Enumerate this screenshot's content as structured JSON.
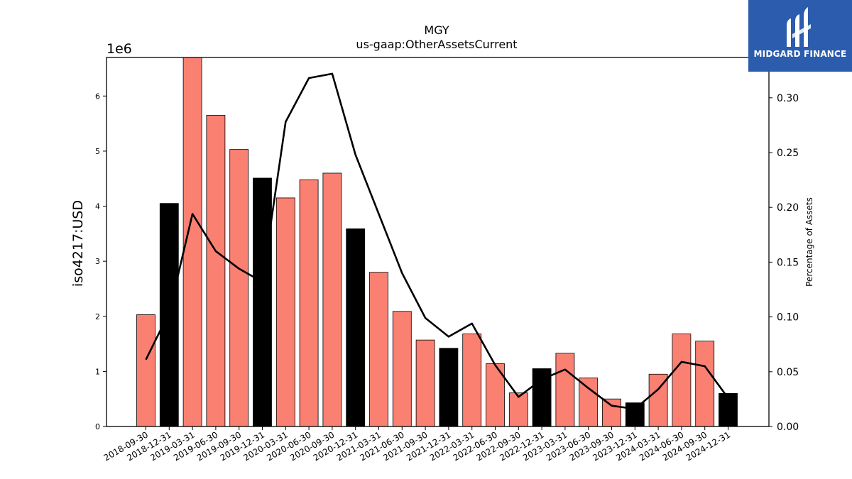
{
  "logo": {
    "text": "MIDGARD FINANCE"
  },
  "chart_data": {
    "type": "bar",
    "title": "MGY",
    "subtitle": "us-gaap:OtherAssetsCurrent",
    "ylabel": "iso4217:USD",
    "y2label": "Percentage of Assets",
    "y_multiplier_label": "1e6",
    "ylim": [
      0,
      6700000
    ],
    "y2lim": [
      0,
      0.3368
    ],
    "yticks": [
      0,
      1,
      2,
      3,
      4,
      5,
      6
    ],
    "y2ticks": [
      "0.00",
      "0.05",
      "0.10",
      "0.15",
      "0.20",
      "0.25",
      "0.30"
    ],
    "categories": [
      "2018-09-30",
      "2018-12-31",
      "2019-03-31",
      "2019-06-30",
      "2019-09-30",
      "2019-12-31",
      "2020-03-31",
      "2020-06-30",
      "2020-09-30",
      "2020-12-31",
      "2021-03-31",
      "2021-06-30",
      "2021-09-30",
      "2021-12-31",
      "2022-03-31",
      "2022-06-30",
      "2022-09-30",
      "2022-12-31",
      "2023-03-31",
      "2023-06-30",
      "2023-09-30",
      "2023-12-31",
      "2024-03-31",
      "2024-06-30",
      "2024-09-30",
      "2024-12-31"
    ],
    "series": [
      {
        "type": "bar",
        "values": [
          2030000,
          4050000,
          6700000,
          5650000,
          5030000,
          4510000,
          4150000,
          4480000,
          4600000,
          3590000,
          2800000,
          2090000,
          1570000,
          1420000,
          1680000,
          1140000,
          610000,
          1050000,
          1330000,
          880000,
          500000,
          430000,
          950000,
          1680000,
          1550000,
          600000
        ],
        "colors": [
          "#fa8072",
          "#000000",
          "#fa8072",
          "#fa8072",
          "#fa8072",
          "#000000",
          "#fa8072",
          "#fa8072",
          "#fa8072",
          "#000000",
          "#fa8072",
          "#fa8072",
          "#fa8072",
          "#000000",
          "#fa8072",
          "#fa8072",
          "#fa8072",
          "#000000",
          "#fa8072",
          "#fa8072",
          "#fa8072",
          "#000000",
          "#fa8072",
          "#fa8072",
          "#fa8072",
          "#000000"
        ]
      },
      {
        "type": "line",
        "axis": "right",
        "color": "#000000",
        "values": [
          0.061,
          0.104,
          0.194,
          0.16,
          0.144,
          0.132,
          0.278,
          0.318,
          0.322,
          0.248,
          0.194,
          0.14,
          0.099,
          0.082,
          0.094,
          0.056,
          0.027,
          0.043,
          0.052,
          0.035,
          0.019,
          0.016,
          0.034,
          0.059,
          0.055,
          0.026
        ]
      }
    ],
    "grid": false,
    "legend": "none"
  }
}
